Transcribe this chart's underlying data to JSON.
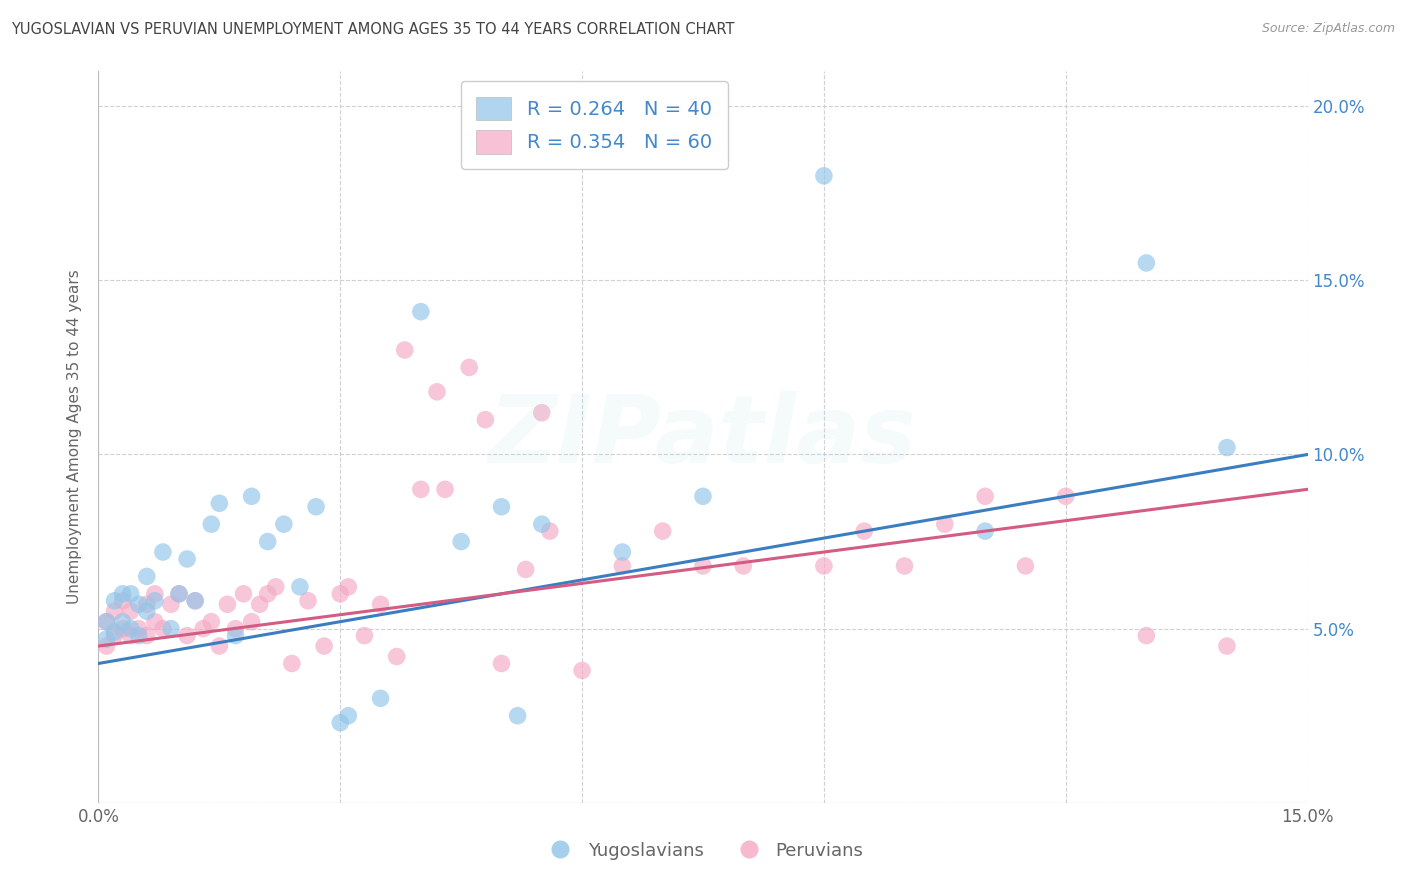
{
  "title": "YUGOSLAVIAN VS PERUVIAN UNEMPLOYMENT AMONG AGES 35 TO 44 YEARS CORRELATION CHART",
  "source": "Source: ZipAtlas.com",
  "ylabel": "Unemployment Among Ages 35 to 44 years",
  "xlim": [
    0.0,
    0.15
  ],
  "ylim": [
    0.0,
    0.21
  ],
  "blue_color": "#90c4e8",
  "pink_color": "#f4a8c4",
  "blue_line_color": "#3a7ec1",
  "pink_line_color": "#d45c82",
  "legend_blue_R": "0.264",
  "legend_blue_N": "40",
  "legend_pink_R": "0.354",
  "legend_pink_N": "60",
  "legend_label_blue": "Yugoslavians",
  "legend_label_pink": "Peruvians",
  "blue_line_x0": 0.0,
  "blue_line_y0": 0.04,
  "blue_line_x1": 0.15,
  "blue_line_y1": 0.1,
  "pink_line_x0": 0.0,
  "pink_line_y0": 0.045,
  "pink_line_x1": 0.15,
  "pink_line_y1": 0.09,
  "blue_x": [
    0.001,
    0.001,
    0.002,
    0.002,
    0.003,
    0.003,
    0.004,
    0.004,
    0.005,
    0.005,
    0.006,
    0.006,
    0.007,
    0.008,
    0.009,
    0.01,
    0.011,
    0.012,
    0.014,
    0.015,
    0.017,
    0.019,
    0.021,
    0.023,
    0.025,
    0.027,
    0.03,
    0.031,
    0.035,
    0.04,
    0.045,
    0.05,
    0.052,
    0.055,
    0.065,
    0.075,
    0.09,
    0.11,
    0.13,
    0.14
  ],
  "blue_y": [
    0.047,
    0.052,
    0.049,
    0.058,
    0.052,
    0.06,
    0.05,
    0.06,
    0.048,
    0.057,
    0.055,
    0.065,
    0.058,
    0.072,
    0.05,
    0.06,
    0.07,
    0.058,
    0.08,
    0.086,
    0.048,
    0.088,
    0.075,
    0.08,
    0.062,
    0.085,
    0.023,
    0.025,
    0.03,
    0.141,
    0.075,
    0.085,
    0.025,
    0.08,
    0.072,
    0.088,
    0.18,
    0.078,
    0.155,
    0.102
  ],
  "pink_x": [
    0.001,
    0.001,
    0.002,
    0.002,
    0.003,
    0.003,
    0.004,
    0.004,
    0.005,
    0.006,
    0.006,
    0.007,
    0.007,
    0.008,
    0.009,
    0.01,
    0.011,
    0.012,
    0.013,
    0.014,
    0.015,
    0.016,
    0.017,
    0.018,
    0.019,
    0.02,
    0.021,
    0.022,
    0.024,
    0.026,
    0.028,
    0.03,
    0.031,
    0.033,
    0.035,
    0.037,
    0.04,
    0.043,
    0.046,
    0.05,
    0.053,
    0.056,
    0.06,
    0.065,
    0.07,
    0.075,
    0.08,
    0.09,
    0.095,
    0.1,
    0.105,
    0.11,
    0.115,
    0.12,
    0.13,
    0.14,
    0.038,
    0.042,
    0.048,
    0.055
  ],
  "pink_y": [
    0.045,
    0.052,
    0.048,
    0.055,
    0.05,
    0.058,
    0.048,
    0.055,
    0.05,
    0.048,
    0.057,
    0.052,
    0.06,
    0.05,
    0.057,
    0.06,
    0.048,
    0.058,
    0.05,
    0.052,
    0.045,
    0.057,
    0.05,
    0.06,
    0.052,
    0.057,
    0.06,
    0.062,
    0.04,
    0.058,
    0.045,
    0.06,
    0.062,
    0.048,
    0.057,
    0.042,
    0.09,
    0.09,
    0.125,
    0.04,
    0.067,
    0.078,
    0.038,
    0.068,
    0.078,
    0.068,
    0.068,
    0.068,
    0.078,
    0.068,
    0.08,
    0.088,
    0.068,
    0.088,
    0.048,
    0.045,
    0.13,
    0.118,
    0.11,
    0.112
  ],
  "background_color": "#ffffff",
  "grid_color": "#cccccc",
  "watermark_text": "ZIPatlas",
  "watermark_alpha": 0.12,
  "right_axis_color": "#4488cc",
  "title_color": "#444444",
  "source_color": "#999999",
  "label_color": "#666666"
}
